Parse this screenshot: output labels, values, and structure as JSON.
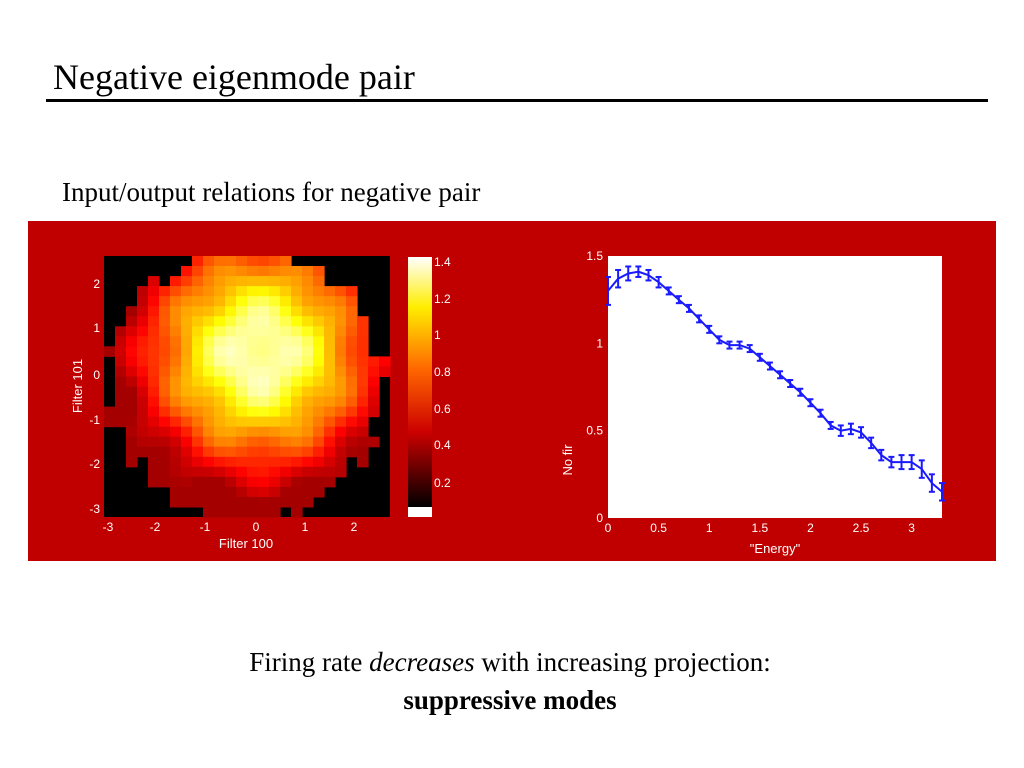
{
  "slide": {
    "title": "Negative eigenmode pair",
    "subtitle": "Input/output relations for negative pair",
    "caption_line1_prefix": "Firing rate ",
    "caption_line1_italic": "decreases",
    "caption_line1_suffix": " with increasing projection:",
    "caption_line2": "suppressive modes"
  },
  "colors": {
    "figure_background": "#c00000",
    "series_color": "#1a1aff",
    "heatmap_background": "#000000"
  },
  "chart_data": [
    {
      "type": "heatmap",
      "xlabel": "Filter 100",
      "ylabel": "Filter 101",
      "xticks": [
        "-3",
        "-2",
        "-1",
        "0",
        "1",
        "2"
      ],
      "yticks": [
        "2",
        "1",
        "0",
        "-1",
        "-2",
        "-3"
      ],
      "xlim": [
        -3.2,
        2.7
      ],
      "ylim": [
        -3.0,
        2.6
      ],
      "colormap": "hot",
      "colorbar": {
        "ticks": [
          "1.4",
          "1.2",
          "1",
          "0.8",
          "0.6",
          "0.4",
          "0.2"
        ],
        "range": [
          0.1,
          1.45
        ]
      },
      "support": "disk",
      "peak": {
        "x": 0.0,
        "y": 0.5,
        "value": 1.4
      }
    },
    {
      "type": "line",
      "xlabel": "\"Energy\"",
      "ylabel": "No fir",
      "xlim": [
        0,
        3.3
      ],
      "ylim": [
        0,
        1.5
      ],
      "xticks": [
        "0",
        "0.5",
        "1",
        "1.5",
        "2",
        "2.5",
        "3"
      ],
      "yticks": [
        "0",
        "0.5",
        "1",
        "1.5"
      ],
      "error_bars": true,
      "x": [
        0.0,
        0.1,
        0.2,
        0.3,
        0.4,
        0.5,
        0.6,
        0.7,
        0.8,
        0.9,
        1.0,
        1.1,
        1.2,
        1.3,
        1.4,
        1.5,
        1.6,
        1.7,
        1.8,
        1.9,
        2.0,
        2.1,
        2.2,
        2.3,
        2.4,
        2.5,
        2.6,
        2.7,
        2.8,
        2.9,
        3.0,
        3.1,
        3.2,
        3.3
      ],
      "y": [
        1.3,
        1.37,
        1.4,
        1.41,
        1.39,
        1.35,
        1.3,
        1.25,
        1.2,
        1.14,
        1.08,
        1.02,
        0.99,
        0.99,
        0.97,
        0.92,
        0.87,
        0.82,
        0.77,
        0.72,
        0.66,
        0.6,
        0.53,
        0.5,
        0.51,
        0.49,
        0.43,
        0.36,
        0.32,
        0.32,
        0.32,
        0.28,
        0.2,
        0.15
      ],
      "yerr": [
        0.08,
        0.05,
        0.04,
        0.03,
        0.03,
        0.03,
        0.02,
        0.02,
        0.02,
        0.02,
        0.02,
        0.02,
        0.02,
        0.02,
        0.02,
        0.02,
        0.02,
        0.02,
        0.02,
        0.02,
        0.02,
        0.02,
        0.02,
        0.03,
        0.03,
        0.03,
        0.03,
        0.03,
        0.03,
        0.04,
        0.04,
        0.05,
        0.05,
        0.05
      ]
    }
  ]
}
